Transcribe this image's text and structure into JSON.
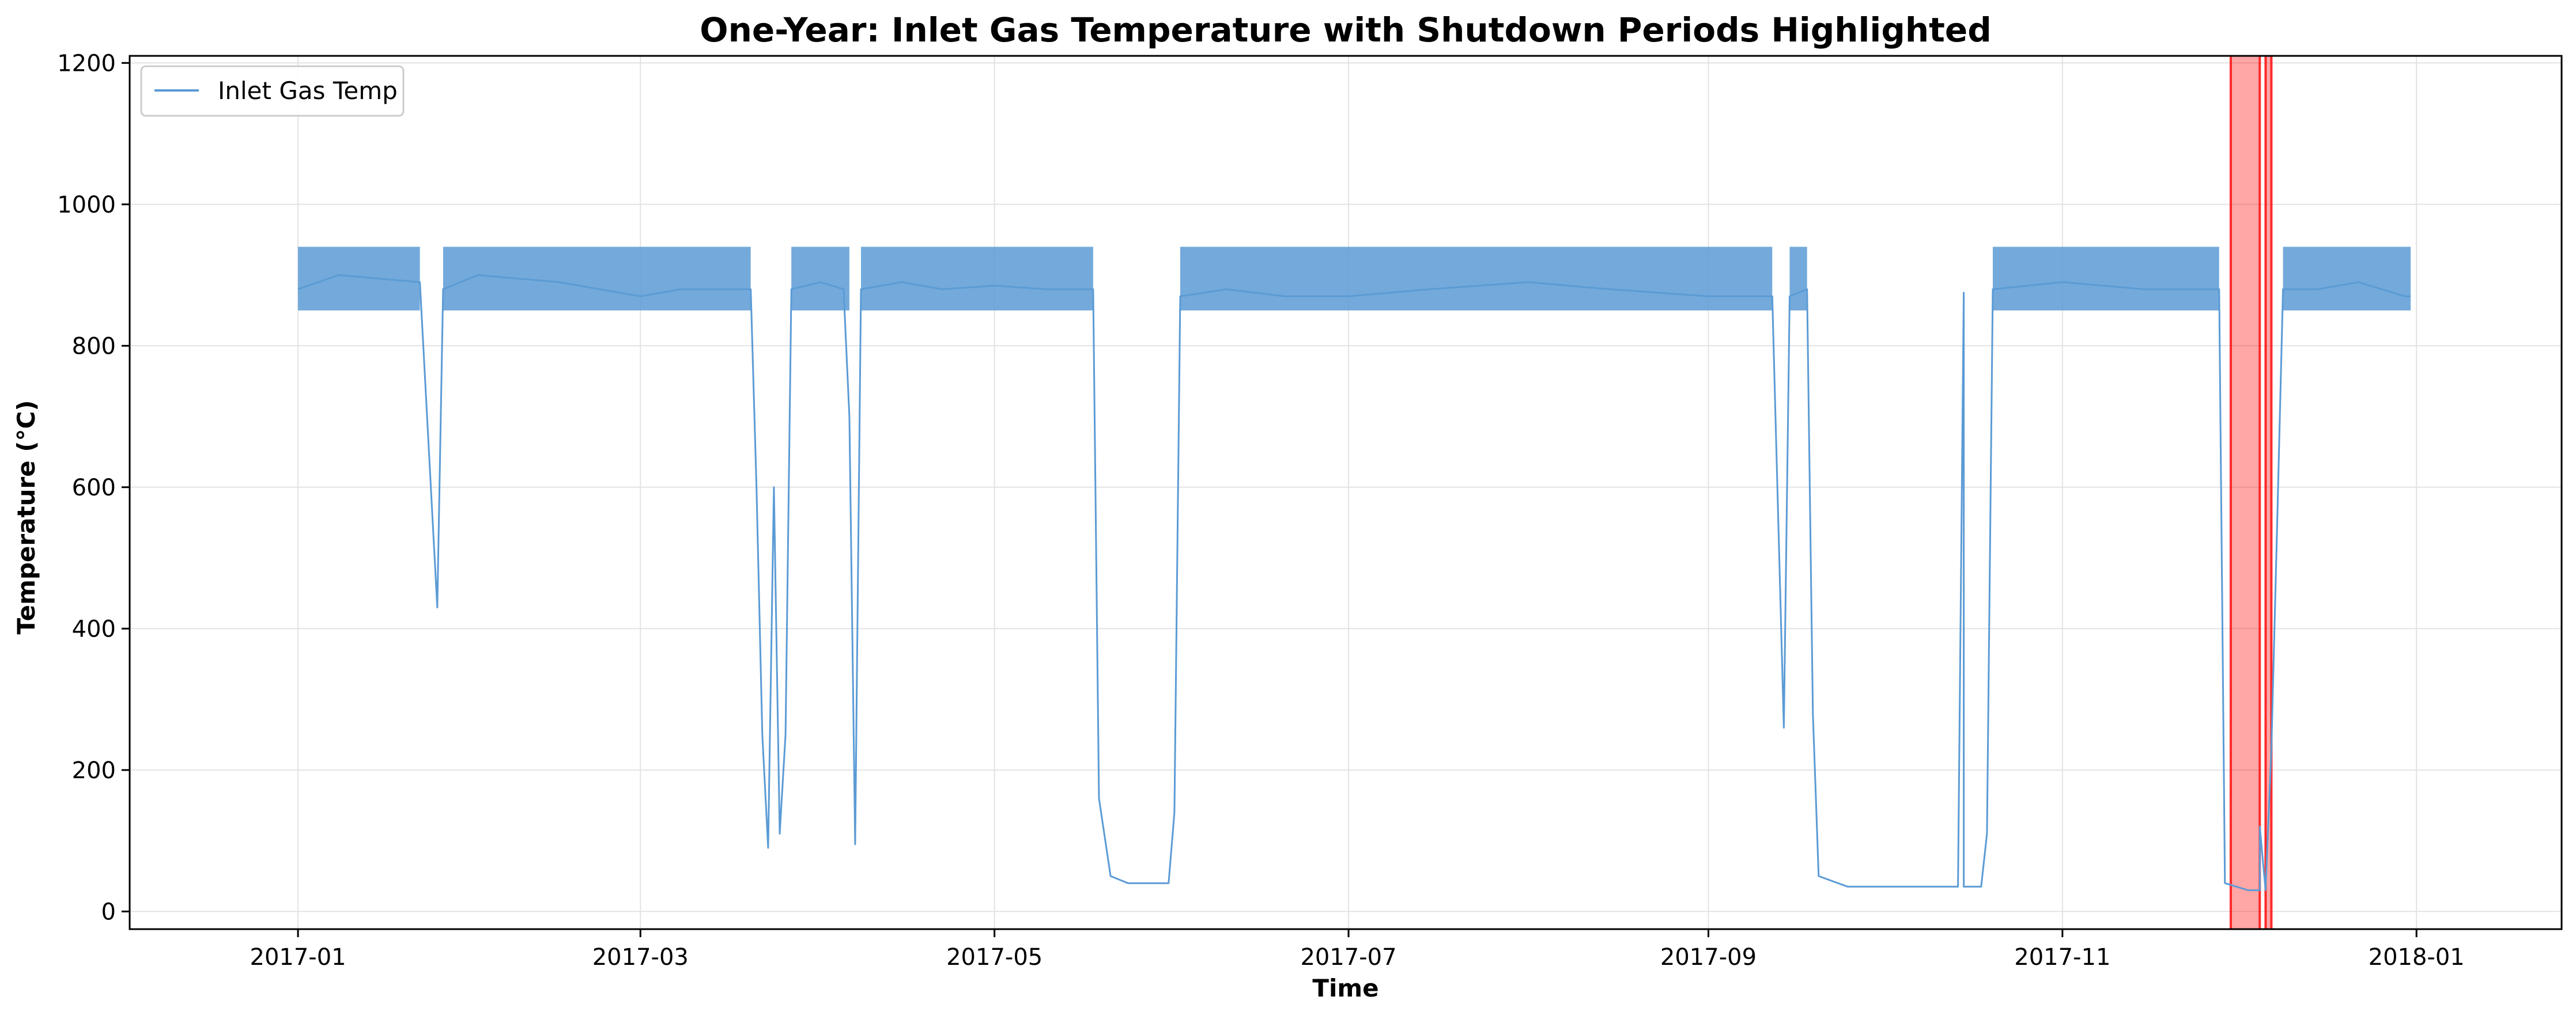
{
  "chart_data": {
    "type": "line",
    "title": "One-Year: Inlet Gas Temperature with Shutdown Periods Highlighted",
    "xlabel": "Time",
    "ylabel": "Temperature (°C)",
    "x_type": "date",
    "xlim": [
      "2016-12-03",
      "2018-01-26"
    ],
    "ylim": [
      -25,
      1210
    ],
    "xticks": [
      {
        "value": "2017-01-01",
        "label": "2017-01"
      },
      {
        "value": "2017-03-01",
        "label": "2017-03"
      },
      {
        "value": "2017-05-01",
        "label": "2017-05"
      },
      {
        "value": "2017-07-01",
        "label": "2017-07"
      },
      {
        "value": "2017-09-01",
        "label": "2017-09"
      },
      {
        "value": "2017-11-01",
        "label": "2017-11"
      },
      {
        "value": "2018-01-01",
        "label": "2018-01"
      }
    ],
    "yticks": [
      0,
      200,
      400,
      600,
      800,
      1000,
      1200
    ],
    "grid": true,
    "legend": {
      "position": "top-left",
      "entries": [
        "Inlet Gas Temp"
      ]
    },
    "series": [
      {
        "name": "Inlet Gas Temp",
        "color": "#5b9bd5",
        "baseline_band": [
          850,
          940
        ],
        "points": [
          [
            "2017-01-01",
            880
          ],
          [
            "2017-01-08",
            900
          ],
          [
            "2017-01-15",
            895
          ],
          [
            "2017-01-22",
            890
          ],
          [
            "2017-01-25",
            430
          ],
          [
            "2017-01-26",
            880
          ],
          [
            "2017-02-01",
            900
          ],
          [
            "2017-02-08",
            895
          ],
          [
            "2017-02-15",
            890
          ],
          [
            "2017-02-22",
            880
          ],
          [
            "2017-03-01",
            870
          ],
          [
            "2017-03-08",
            880
          ],
          [
            "2017-03-15",
            880
          ],
          [
            "2017-03-20",
            880
          ],
          [
            "2017-03-21",
            600
          ],
          [
            "2017-03-22",
            250
          ],
          [
            "2017-03-23",
            90
          ],
          [
            "2017-03-24",
            600
          ],
          [
            "2017-03-25",
            110
          ],
          [
            "2017-03-26",
            250
          ],
          [
            "2017-03-27",
            880
          ],
          [
            "2017-04-01",
            890
          ],
          [
            "2017-04-05",
            880
          ],
          [
            "2017-04-06",
            700
          ],
          [
            "2017-04-07",
            95
          ],
          [
            "2017-04-08",
            880
          ],
          [
            "2017-04-15",
            890
          ],
          [
            "2017-04-22",
            880
          ],
          [
            "2017-05-01",
            885
          ],
          [
            "2017-05-10",
            880
          ],
          [
            "2017-05-18",
            880
          ],
          [
            "2017-05-19",
            160
          ],
          [
            "2017-05-21",
            50
          ],
          [
            "2017-05-24",
            40
          ],
          [
            "2017-05-31",
            40
          ],
          [
            "2017-06-01",
            140
          ],
          [
            "2017-06-02",
            870
          ],
          [
            "2017-06-10",
            880
          ],
          [
            "2017-06-20",
            870
          ],
          [
            "2017-07-01",
            870
          ],
          [
            "2017-07-15",
            880
          ],
          [
            "2017-08-01",
            890
          ],
          [
            "2017-08-15",
            880
          ],
          [
            "2017-09-01",
            870
          ],
          [
            "2017-09-12",
            870
          ],
          [
            "2017-09-14",
            260
          ],
          [
            "2017-09-15",
            870
          ],
          [
            "2017-09-18",
            880
          ],
          [
            "2017-09-19",
            280
          ],
          [
            "2017-09-20",
            50
          ],
          [
            "2017-09-25",
            35
          ],
          [
            "2017-10-01",
            35
          ],
          [
            "2017-10-08",
            35
          ],
          [
            "2017-10-14",
            35
          ],
          [
            "2017-10-15",
            875
          ],
          [
            "2017-10-15",
            35
          ],
          [
            "2017-10-18",
            35
          ],
          [
            "2017-10-19",
            110
          ],
          [
            "2017-10-20",
            880
          ],
          [
            "2017-11-01",
            890
          ],
          [
            "2017-11-15",
            880
          ],
          [
            "2017-11-28",
            880
          ],
          [
            "2017-11-29",
            40
          ],
          [
            "2017-12-03",
            30
          ],
          [
            "2017-12-05",
            30
          ],
          [
            "2017-12-05",
            120
          ],
          [
            "2017-12-06",
            30
          ],
          [
            "2017-12-07",
            230
          ],
          [
            "2017-12-08",
            550
          ],
          [
            "2017-12-09",
            880
          ],
          [
            "2017-12-15",
            880
          ],
          [
            "2017-12-22",
            890
          ],
          [
            "2017-12-30",
            870
          ],
          [
            "2017-12-31",
            870
          ]
        ]
      }
    ],
    "highlight_regions": {
      "name": "Shutdown Periods",
      "color": "#ff0000",
      "ranges": [
        [
          "2017-11-30",
          "2017-12-05"
        ],
        [
          "2017-12-06",
          "2017-12-07"
        ]
      ]
    }
  }
}
